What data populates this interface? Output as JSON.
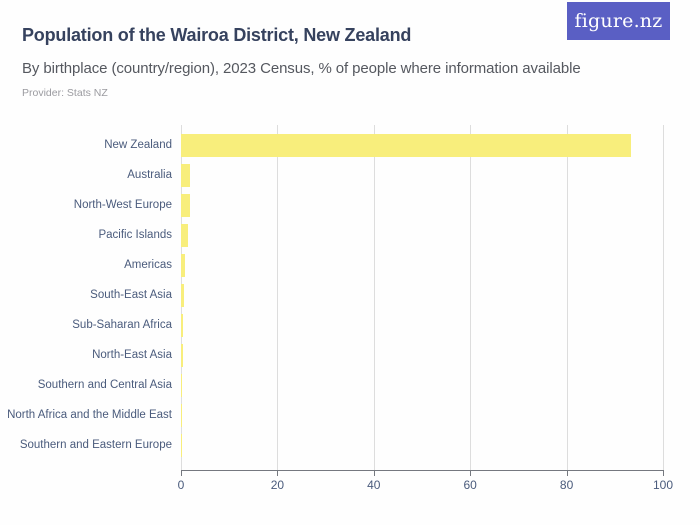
{
  "header": {
    "title": "Population of the Wairoa District, New Zealand",
    "subtitle": "By birthplace (country/region), 2023 Census, % of people where information available",
    "provider": "Provider: Stats NZ"
  },
  "logo": {
    "text": "figure.nz",
    "background": "#5A5FC4",
    "text_color": "#FFFFFF"
  },
  "chart_data": {
    "type": "bar",
    "orientation": "horizontal",
    "title": "Population of the Wairoa District, New Zealand",
    "subtitle": "By birthplace (country/region), 2023 Census, % of people where information available",
    "provider": "Provider: Stats NZ",
    "xlabel": "",
    "ylabel": "",
    "unit": "%",
    "xlim": [
      0,
      100
    ],
    "x_ticks": [
      0,
      20,
      40,
      60,
      80,
      100
    ],
    "grid": true,
    "legend": false,
    "categories": [
      "New Zealand",
      "Australia",
      "North-West Europe",
      "Pacific Islands",
      "Americas",
      "South-East Asia",
      "Sub-Saharan Africa",
      "North-East Asia",
      "Southern and Central Asia",
      "North Africa and the Middle East",
      "Southern and Eastern Europe"
    ],
    "values": [
      93.3,
      1.9,
      1.8,
      1.5,
      0.8,
      0.6,
      0.5,
      0.4,
      0.3,
      0.15,
      0.1
    ],
    "bar_color": "#F8EE7C"
  },
  "colors": {
    "title": "#36425E",
    "subtitle": "#55585F",
    "provider": "#9B9BA0",
    "axis_text": "#4A5B7C",
    "gridline": "#DDDDDD",
    "axis_line": "#75787F",
    "bar": "#F8EE7C",
    "logo_background": "#5A5FC4",
    "background": "#FEFEFE"
  }
}
